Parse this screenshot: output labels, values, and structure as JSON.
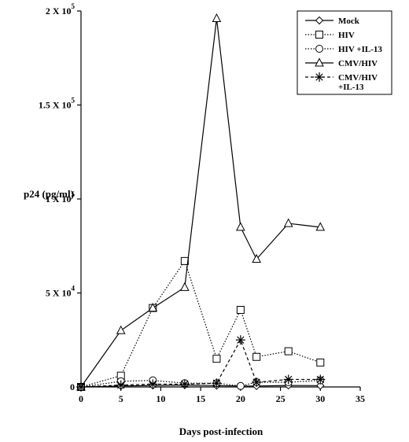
{
  "chart_data": {
    "type": "line",
    "title": "",
    "xlabel": "Days post-infection",
    "ylabel": "p24 (pg/ml)",
    "xlim": [
      0,
      35
    ],
    "ylim": [
      0,
      200000
    ],
    "x_ticks": [
      0,
      5,
      10,
      15,
      20,
      25,
      30,
      35
    ],
    "y_ticks": [
      {
        "value": 0,
        "label": "0",
        "exp": ""
      },
      {
        "value": 50000,
        "label": "5 X 10",
        "exp": "4"
      },
      {
        "value": 100000,
        "label": "1 X 10",
        "exp": "5"
      },
      {
        "value": 150000,
        "label": "1.5 X 10",
        "exp": "5"
      },
      {
        "value": 200000,
        "label": "2 X 10",
        "exp": "5"
      }
    ],
    "grid": false,
    "legend_position": "top-right",
    "series": [
      {
        "name": "Mock",
        "marker": "diamond",
        "dash": "solid",
        "x": [
          0,
          5,
          9,
          13,
          17,
          20,
          22,
          26,
          30
        ],
        "y": [
          0,
          500,
          800,
          1000,
          700,
          500,
          500,
          800,
          700
        ]
      },
      {
        "name": "HIV",
        "marker": "square",
        "dash": "dotted",
        "x": [
          0,
          5,
          9,
          13,
          17,
          20,
          22,
          26,
          30
        ],
        "y": [
          0,
          6000,
          42000,
          67000,
          15000,
          41000,
          16000,
          19000,
          13000
        ]
      },
      {
        "name": "HIV +IL-13",
        "marker": "circle",
        "dash": "dotted",
        "x": [
          0,
          5,
          9,
          13,
          17,
          20,
          22,
          26,
          30
        ],
        "y": [
          0,
          3000,
          3500,
          2000,
          2000,
          500,
          2500,
          2500,
          3500
        ]
      },
      {
        "name": "CMV/HIV",
        "marker": "triangle",
        "dash": "solid",
        "x": [
          0,
          5,
          9,
          13,
          17,
          20,
          22,
          26,
          30
        ],
        "y": [
          0,
          30000,
          42000,
          53000,
          196000,
          85000,
          68000,
          87000,
          85000
        ]
      },
      {
        "name": "CMV/HIV +IL-13",
        "legend_lines": [
          "CMV/HIV",
          "+IL-13"
        ],
        "marker": "asterisk",
        "dash": "dashed",
        "x": [
          0,
          5,
          9,
          13,
          17,
          20,
          22,
          26,
          30
        ],
        "y": [
          0,
          1000,
          1500,
          1500,
          2000,
          25000,
          2500,
          4000,
          4000
        ]
      }
    ]
  }
}
